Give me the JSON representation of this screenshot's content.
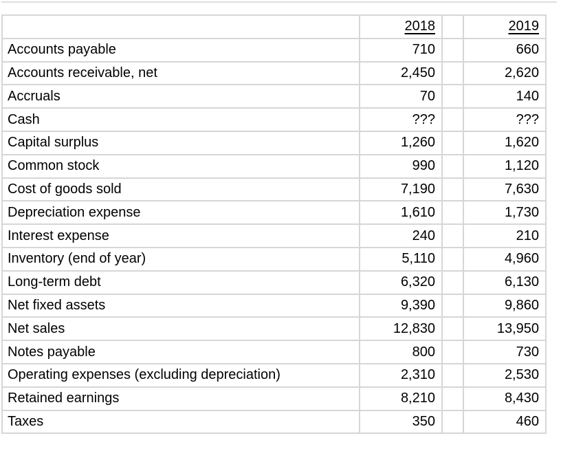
{
  "colors": {
    "background": "#ffffff",
    "gridline": "#d6d6d6",
    "text": "#000000"
  },
  "table": {
    "header": {
      "year_2018": "2018",
      "year_2019": "2019"
    },
    "rows": [
      {
        "label": "Accounts payable",
        "y2018": "710",
        "y2019": "660"
      },
      {
        "label": "Accounts receivable, net",
        "y2018": "2,450",
        "y2019": "2,620"
      },
      {
        "label": "Accruals",
        "y2018": "70",
        "y2019": "140"
      },
      {
        "label": "Cash",
        "y2018": "???",
        "y2019": "???"
      },
      {
        "label": "Capital surplus",
        "y2018": "1,260",
        "y2019": "1,620"
      },
      {
        "label": "Common stock",
        "y2018": "990",
        "y2019": "1,120"
      },
      {
        "label": "Cost of goods sold",
        "y2018": "7,190",
        "y2019": "7,630"
      },
      {
        "label": "Depreciation expense",
        "y2018": "1,610",
        "y2019": "1,730"
      },
      {
        "label": "Interest expense",
        "y2018": "240",
        "y2019": "210"
      },
      {
        "label": "Inventory (end of year)",
        "y2018": "5,110",
        "y2019": "4,960"
      },
      {
        "label": "Long-term debt",
        "y2018": "6,320",
        "y2019": "6,130"
      },
      {
        "label": "Net fixed assets",
        "y2018": "9,390",
        "y2019": "9,860"
      },
      {
        "label": "Net sales",
        "y2018": "12,830",
        "y2019": "13,950"
      },
      {
        "label": "Notes payable",
        "y2018": "800",
        "y2019": "730"
      },
      {
        "label": "Operating expenses (excluding depreciation)",
        "y2018": "2,310",
        "y2019": "2,530"
      },
      {
        "label": "Retained earnings",
        "y2018": "8,210",
        "y2019": "8,430"
      },
      {
        "label": "Taxes",
        "y2018": "350",
        "y2019": "460"
      }
    ]
  }
}
